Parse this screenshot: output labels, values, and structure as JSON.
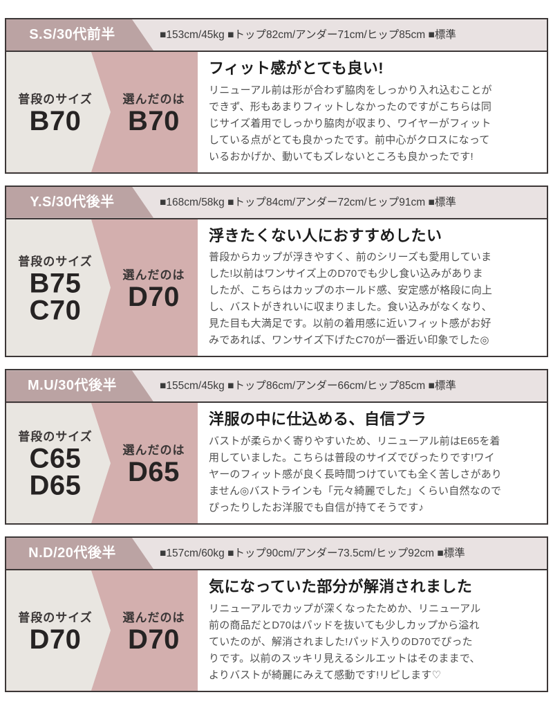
{
  "colors": {
    "ribbon_mauve": "#bba3a3",
    "header_bg": "#e9e2e2",
    "chosen_pink": "#d3afae",
    "usual_gray": "#e9e6e1",
    "border_dark": "#3c3737",
    "text_dark": "#1c1c1c",
    "text_body": "#4f4f4f"
  },
  "labels": {
    "usual": "普段のサイズ",
    "chosen": "選んだのは"
  },
  "cards": [
    {
      "reviewer": "S.S/30代前半",
      "stats": "■153cm/45kg ■トップ82cm/アンダー71cm/ヒップ85cm ■標準",
      "usual_size": "B70",
      "chosen_size": "B70",
      "title": "フィット感がとても良い!",
      "body": "リニューアル前は形が合わず脇肉をしっかり入れ込むことが\nできず、形もあまりフィットしなかったのですがこちらは同\nじサイズ着用でしっかり脇肉が収まり、ワイヤーがフィット\nしている点がとても良かったです。前中心がクロスになって\nいるおかげか、動いてもズレないところも良かったです!"
    },
    {
      "reviewer": "Y.S/30代後半",
      "stats": "■168cm/58kg ■トップ84cm/アンダー72cm/ヒップ91cm ■標準",
      "usual_size": "B75\nC70",
      "chosen_size": "D70",
      "title": "浮きたくない人におすすめしたい",
      "body": "普段からカップが浮きやすく、前のシリーズも愛用していま\nした!以前はワンサイズ上のD70でも少し食い込みがありま\nしたが、こちらはカップのホールド感、安定感が格段に向上\nし、バストがきれいに収まりました。食い込みがなくなり、\n見た目も大満足です。以前の着用感に近いフィット感がお好\nみであれば、ワンサイズ下げたC70が一番近い印象でした◎"
    },
    {
      "reviewer": "M.U/30代後半",
      "stats": "■155cm/45kg ■トップ86cm/アンダー66cm/ヒップ85cm ■標準",
      "usual_size": "C65\nD65",
      "chosen_size": "D65",
      "title": "洋服の中に仕込める、自信ブラ",
      "body": "バストが柔らかく寄りやすいため、リニューアル前はE65を着\n用していました。こちらは普段のサイズでぴったりです!ワイ\nヤーのフィット感が良く長時間つけていても全く苦しさがあり\nません◎バストラインも「元々綺麗でした」くらい自然なので\nぴったりしたお洋服でも自信が持てそうです♪"
    },
    {
      "reviewer": "N.D/20代後半",
      "stats": "■157cm/60kg ■トップ90cm/アンダー73.5cm/ヒップ92cm ■標準",
      "usual_size": "D70",
      "chosen_size": "D70",
      "title": "気になっていた部分が解消されました",
      "body": "リニューアルでカップが深くなったためか、リニューアル\n前の商品だとD70はパッドを抜いても少しカップから溢れ\nていたのが、解消されました!パッド入りのD70でぴった\nりです。以前のスッキリ見えるシルエットはそのままで、\nよりバストが綺麗にみえて感動です!リピします♡"
    }
  ]
}
